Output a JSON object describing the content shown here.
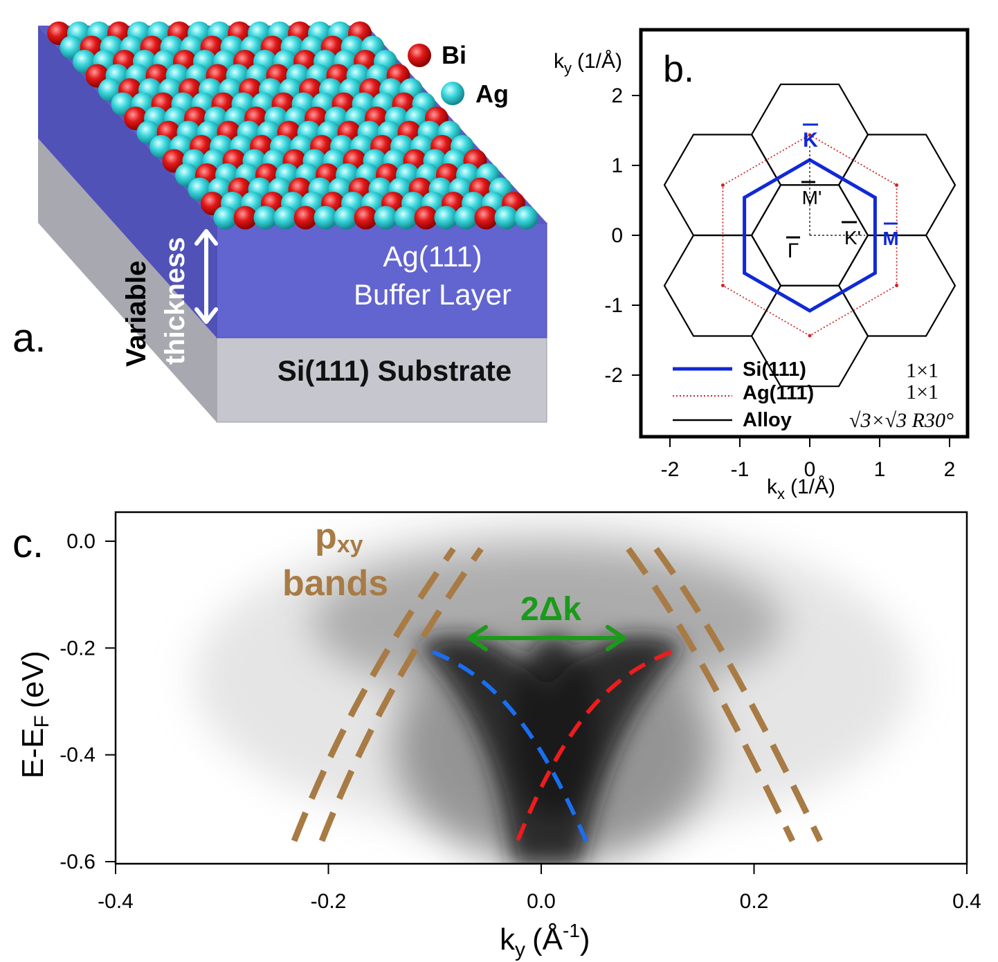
{
  "panel_a": {
    "letter": "a.",
    "legend": [
      {
        "label": "Bi",
        "color": "#d81414"
      },
      {
        "label": "Ag",
        "color": "#33d6dc"
      }
    ],
    "thickness_label_1": "Variable",
    "thickness_label_2": "thickness",
    "buffer_label_1": "Ag(111)",
    "buffer_label_2": "Buffer Layer",
    "substrate_label": "Si(111) Substrate",
    "colors": {
      "buffer": "#6264d0",
      "buffer_side": "#5052b8",
      "substrate": "#c6c6ce",
      "substrate_side": "#a8a8b0"
    }
  },
  "panel_b": {
    "letter": "b.",
    "ylabel": "k",
    "ylabel_sub": "y",
    "ylabel_unit": "(1/Å)",
    "xlabel": "k",
    "xlabel_sub": "x",
    "xlabel_unit": "(1/Å)",
    "xticks": [
      "-2",
      "-1",
      "0",
      "1",
      "2"
    ],
    "yticks": [
      "2",
      "1",
      "0",
      "-1",
      "-2"
    ],
    "points": {
      "K": "K",
      "M": "M",
      "Mp": "M'",
      "Kp": "K'",
      "Gamma": "Γ"
    },
    "legend": [
      {
        "label": "Si(111)",
        "notation": "1×1",
        "color": "#1029d6",
        "style": "solid-thick"
      },
      {
        "label": "Ag(111)",
        "notation": "1×1",
        "color": "#d42020",
        "style": "dotted"
      },
      {
        "label": "Alloy",
        "notation": "√3×√3 R30°",
        "color": "#000000",
        "style": "solid"
      }
    ]
  },
  "panel_c": {
    "letter": "c.",
    "ylabel": "E-E",
    "ylabel_sub": "F",
    "ylabel_unit": "(eV)",
    "xlabel": "k",
    "xlabel_sub": "y",
    "xlabel_unit": "(Å",
    "xlabel_sup": "-1",
    "xlabel_close": ")",
    "xticks": [
      "-0.4",
      "-0.2",
      "0.0",
      "0.2",
      "0.4"
    ],
    "yticks": [
      "0.0",
      "-0.2",
      "-0.4",
      "-0.6"
    ],
    "pxy_label_1": "p",
    "pxy_label_sub": "xy",
    "pxy_label_2": "bands",
    "delta_label": "2Δk",
    "colors": {
      "pxy": "#a87b45",
      "blue": "#1a6ef0",
      "red": "#ee1c1c",
      "arrow": "#1a9a1a"
    }
  }
}
